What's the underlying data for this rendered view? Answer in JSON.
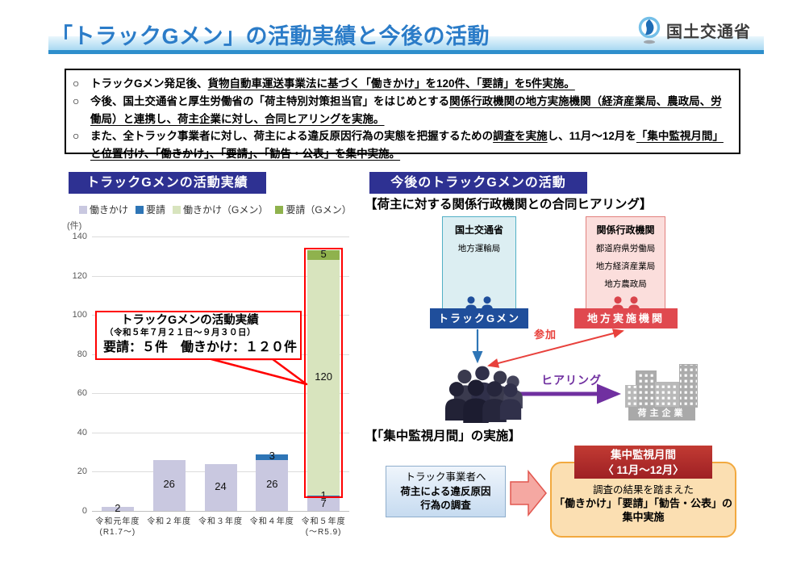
{
  "header": {
    "title": "「トラックGメン」の活動実績と今後の活動",
    "ministry": "国土交通省"
  },
  "summary": {
    "bullets": [
      {
        "marker": "○",
        "segments": [
          {
            "t": "トラックGメン発足後、",
            "u": false
          },
          {
            "t": "貨物自動車運送事業法に基づく「働きかけ」を120件、「要請」を5件実施。",
            "u": true
          }
        ]
      },
      {
        "marker": "○",
        "segments": [
          {
            "t": "今後、国土交通省と厚生労働省の「荷主特別対策担当官」をはじめとする",
            "u": false
          },
          {
            "t": "関係行政機関の地方実施機関（経済産業局、農政局、労働局）と連携し、荷主企業に対し、合同ヒアリングを実施。",
            "u": true
          }
        ]
      },
      {
        "marker": "○",
        "segments": [
          {
            "t": "また、全トラック事業者に対し、荷主による違反原因行為の実態を把握するための",
            "u": false
          },
          {
            "t": "調査を実施",
            "u": true
          },
          {
            "t": "し、11月～12月を",
            "u": false
          },
          {
            "t": "「集中監視月間」と位置付け、「働きかけ」、「要請」、「勧告・公表」を集中実施。",
            "u": true
          }
        ]
      }
    ]
  },
  "activity": {
    "section_title": "トラックGメンの活動実績",
    "callout": {
      "line1": "トラックGメンの活動実績",
      "line2": "（令和５年７月２１日～９月３０日）",
      "line3": "要請：５件　働きかけ：１２０件"
    }
  },
  "chart_data": {
    "type": "bar",
    "stacked": true,
    "title": "トラックGメンの活動実績",
    "ylabel": "(件)",
    "ylim": [
      0,
      140
    ],
    "ytick_interval": 20,
    "grid": true,
    "legend_position": "top",
    "categories": [
      [
        "令和元年度",
        "(R1.7～)"
      ],
      [
        "令和２年度",
        ""
      ],
      [
        "令和３年度",
        ""
      ],
      [
        "令和４年度",
        ""
      ],
      [
        "令和５年度",
        "(～R5.9)"
      ]
    ],
    "series": [
      {
        "name": "働きかけ",
        "color": "#C9C8E0",
        "values": [
          2,
          26,
          24,
          26,
          7
        ]
      },
      {
        "name": "要請",
        "color": "#2E75B6",
        "values": [
          0,
          0,
          0,
          3,
          1
        ]
      },
      {
        "name": "働きかけ（Gメン）",
        "color": "#D8E4BE",
        "values": [
          0,
          0,
          0,
          0,
          120
        ]
      },
      {
        "name": "要請（Gメン）",
        "color": "#8FB24D",
        "values": [
          0,
          0,
          0,
          0,
          5
        ]
      }
    ],
    "highlight": {
      "category": 4,
      "series_from": 2,
      "series_to": 3,
      "border_color": "#FF0000"
    }
  },
  "future": {
    "section_title": "今後のトラックGメンの活動",
    "hearing_heading": "【荷主に対する関係行政機関との合同ヒアリング】",
    "mlit": {
      "title": "国土交通省",
      "items": [
        "地方運輸局"
      ],
      "label": "トラックGメン"
    },
    "agencies": {
      "title": "関係行政機関",
      "items": [
        "都道府県労働局",
        "地方経済産業局",
        "地方農政局"
      ],
      "label": "地方実施機関"
    },
    "participate": "参加",
    "hearing": "ヒアリング",
    "shipper": "荷主企業",
    "monitoring_heading": "【「集中監視月間」の実施】",
    "survey_box": {
      "lines": [
        {
          "t": "トラック事業者へ",
          "b": false
        },
        {
          "t": "荷主による違反原因",
          "b": true
        },
        {
          "t": "行為の調査",
          "b": true
        }
      ]
    },
    "monitoring_box": {
      "title_line1": "集中監視月間",
      "title_line2": "〈 11月～12月〉",
      "body": [
        {
          "t": "調査の結果を踏まえた",
          "b": false
        },
        {
          "t": "「働きかけ」「要請」「勧告・公表」の",
          "b": true
        },
        {
          "t": "集中実施",
          "b": true
        }
      ]
    }
  },
  "colors": {
    "title_blue": "#2B7CC8",
    "section_navy": "#2E3192",
    "callout_red": "#FF0000",
    "accent_red": "#E8413C",
    "purple": "#7030A0",
    "gmen_label_blue": "#1F4E9B",
    "regional_label_red": "#E0494F",
    "monitor_dark_red": "#A82226",
    "orange_box": "#FBDFB2"
  }
}
